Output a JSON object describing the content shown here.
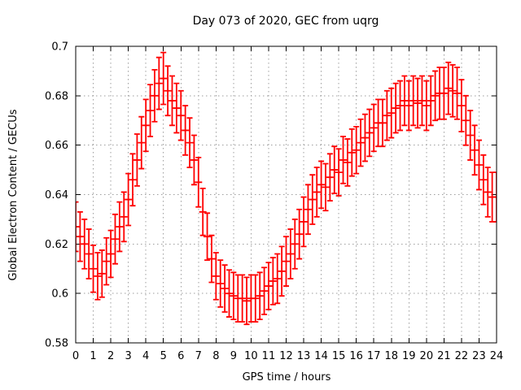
{
  "figure": {
    "background": "#ffffff",
    "text_color": "#000000",
    "grid_color": "#9e9e9e",
    "border_color": "#000000"
  },
  "chart_data": {
    "type": "scatter",
    "style": "yerrorbars",
    "title": "Day 073 of 2020, GEC from uqrg",
    "xlabel": "GPS time / hours",
    "ylabel": "Global Electron Content / GECUs",
    "xlim": [
      0,
      24
    ],
    "ylim": [
      0.58,
      0.7
    ],
    "grid": true,
    "legend": "none",
    "series_color": "#ff0000",
    "xticks": [
      0,
      1,
      2,
      3,
      4,
      5,
      6,
      7,
      8,
      9,
      10,
      11,
      12,
      13,
      14,
      15,
      16,
      17,
      18,
      19,
      20,
      21,
      22,
      23,
      24
    ],
    "yticks": [
      0.58,
      0.6,
      0.62,
      0.64,
      0.66,
      0.68,
      0.7
    ],
    "ytick_labels": [
      "0.58",
      "0.6",
      "0.62",
      "0.64",
      "0.66",
      "0.68",
      "0.7"
    ],
    "x": [
      0,
      0.25,
      0.5,
      0.75,
      1,
      1.25,
      1.5,
      1.75,
      2,
      2.25,
      2.5,
      2.75,
      3,
      3.25,
      3.5,
      3.75,
      4,
      4.25,
      4.5,
      4.75,
      5,
      5.25,
      5.5,
      5.75,
      6,
      6.25,
      6.5,
      6.75,
      7,
      7.25,
      7.5,
      7.75,
      8,
      8.25,
      8.5,
      8.75,
      9,
      9.25,
      9.5,
      9.75,
      10,
      10.25,
      10.5,
      10.75,
      11,
      11.25,
      11.5,
      11.75,
      12,
      12.25,
      12.5,
      12.75,
      13,
      13.25,
      13.5,
      13.75,
      14,
      14.25,
      14.5,
      14.75,
      15,
      15.25,
      15.5,
      15.75,
      16,
      16.25,
      16.5,
      16.75,
      17,
      17.25,
      17.5,
      17.75,
      18,
      18.25,
      18.5,
      18.75,
      19,
      19.25,
      19.5,
      19.75,
      20,
      20.25,
      20.5,
      20.75,
      21,
      21.25,
      21.5,
      21.75,
      22,
      22.25,
      22.5,
      22.75,
      23,
      23.25,
      23.5,
      23.75,
      24
    ],
    "y": [
      0.627,
      0.623,
      0.62,
      0.616,
      0.61,
      0.607,
      0.608,
      0.613,
      0.616,
      0.622,
      0.627,
      0.631,
      0.638,
      0.646,
      0.654,
      0.661,
      0.668,
      0.674,
      0.68,
      0.685,
      0.687,
      0.682,
      0.678,
      0.675,
      0.672,
      0.666,
      0.661,
      0.654,
      0.645,
      0.633,
      0.623,
      0.614,
      0.607,
      0.604,
      0.602,
      0.6,
      0.599,
      0.598,
      0.598,
      0.597,
      0.598,
      0.598,
      0.599,
      0.601,
      0.603,
      0.605,
      0.606,
      0.609,
      0.613,
      0.616,
      0.62,
      0.624,
      0.629,
      0.634,
      0.638,
      0.641,
      0.644,
      0.643,
      0.647,
      0.65,
      0.649,
      0.654,
      0.653,
      0.657,
      0.658,
      0.661,
      0.663,
      0.665,
      0.667,
      0.669,
      0.669,
      0.672,
      0.673,
      0.675,
      0.676,
      0.678,
      0.676,
      0.678,
      0.677,
      0.678,
      0.676,
      0.678,
      0.68,
      0.681,
      0.681,
      0.683,
      0.682,
      0.681,
      0.676,
      0.67,
      0.664,
      0.658,
      0.652,
      0.646,
      0.641,
      0.639,
      0.639
    ],
    "yerr": [
      0.01,
      0.01,
      0.01,
      0.01,
      0.0095,
      0.0095,
      0.0095,
      0.0095,
      0.0095,
      0.01,
      0.01,
      0.01,
      0.0105,
      0.0105,
      0.0105,
      0.0105,
      0.0105,
      0.0105,
      0.0105,
      0.0105,
      0.0105,
      0.01,
      0.01,
      0.01,
      0.01,
      0.01,
      0.01,
      0.01,
      0.01,
      0.0095,
      0.0095,
      0.0095,
      0.0095,
      0.0095,
      0.0095,
      0.0095,
      0.0095,
      0.0095,
      0.0095,
      0.0095,
      0.0095,
      0.0095,
      0.0095,
      0.0095,
      0.0095,
      0.0095,
      0.01,
      0.01,
      0.01,
      0.01,
      0.01,
      0.01,
      0.01,
      0.01,
      0.01,
      0.01,
      0.0095,
      0.0095,
      0.0095,
      0.0095,
      0.0095,
      0.0095,
      0.0095,
      0.0095,
      0.0095,
      0.0095,
      0.0095,
      0.0095,
      0.0095,
      0.0095,
      0.0095,
      0.01,
      0.01,
      0.01,
      0.01,
      0.01,
      0.01,
      0.01,
      0.01,
      0.01,
      0.01,
      0.01,
      0.01,
      0.0105,
      0.0105,
      0.0105,
      0.0105,
      0.0105,
      0.0105,
      0.01,
      0.01,
      0.01,
      0.01,
      0.01,
      0.01,
      0.01,
      0.01
    ]
  }
}
